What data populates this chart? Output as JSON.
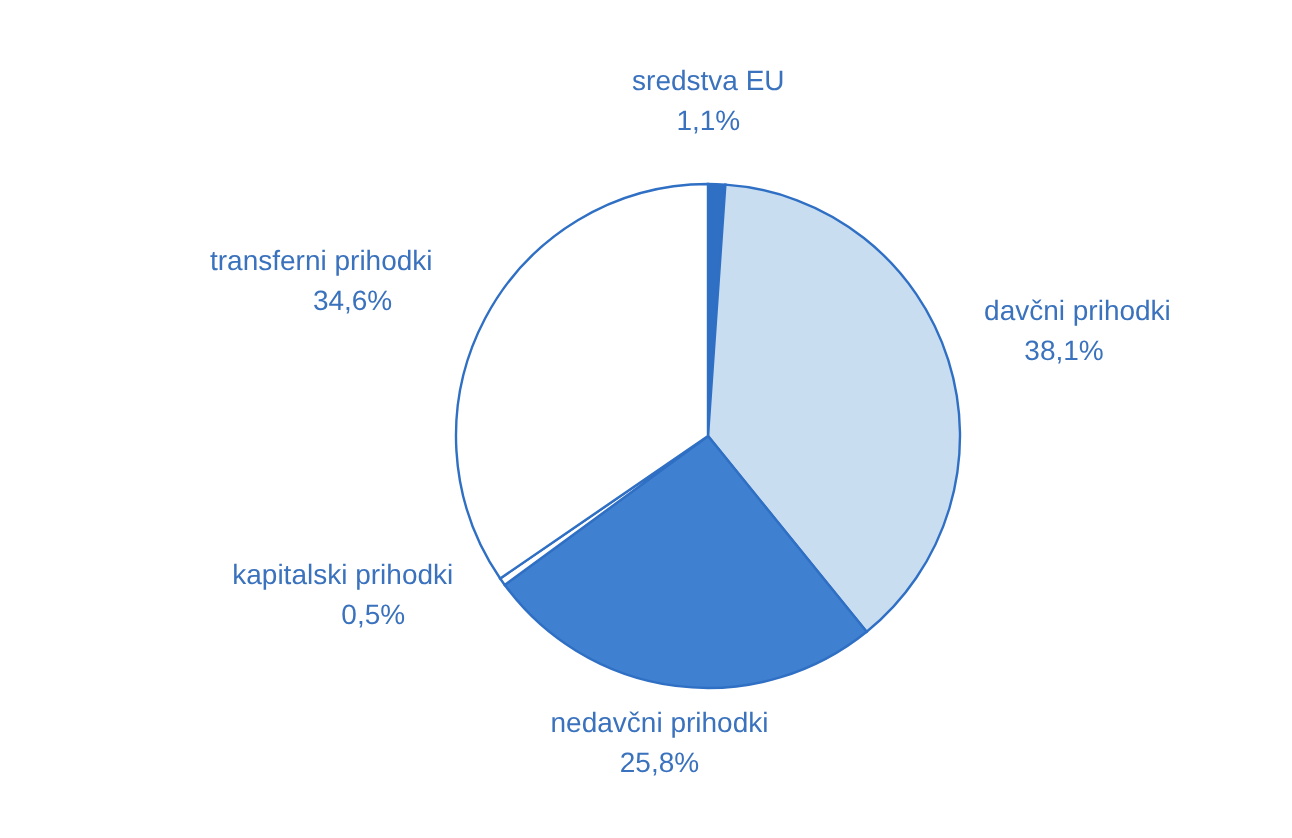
{
  "chart_data": {
    "type": "pie",
    "categories": [
      "sredstva EU",
      "davčni prihodki",
      "nedavčni prihodki",
      "kapitalski prihodki",
      "transferni prihodki"
    ],
    "values": [
      1.1,
      38.1,
      25.8,
      0.5,
      34.6
    ],
    "value_labels": [
      "1,1%",
      "38,1%",
      "25,8%",
      "0,5%",
      "34,6%"
    ],
    "colors": [
      "#2f6fc4",
      "#c9ddf1",
      "#3f80d0",
      "#ffffff",
      "#ffffff"
    ],
    "legend": false
  }
}
